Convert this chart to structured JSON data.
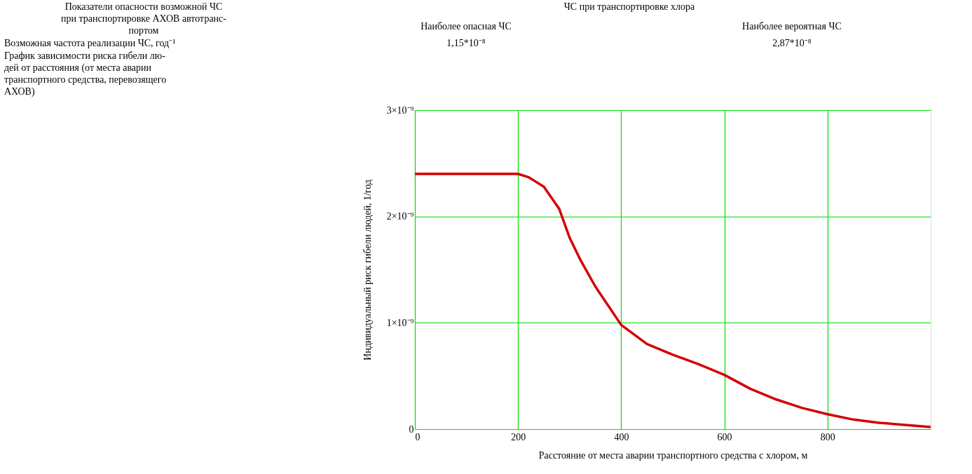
{
  "chart_data": {
    "type": "line",
    "xlabel": "Расстояние от места аварии транспортного средства с хлором, м",
    "ylabel": "Индивидуальный риск гибели людей, 1/год",
    "x": [
      0,
      100,
      200,
      220,
      250,
      280,
      300,
      320,
      350,
      400,
      450,
      500,
      550,
      600,
      650,
      700,
      750,
      800,
      850,
      900,
      950,
      1000
    ],
    "series": [
      {
        "color": "#d40000",
        "values": [
          2.4e-09,
          2.4e-09,
          2.4e-09,
          2.37e-09,
          2.28e-09,
          2.07e-09,
          1.8e-09,
          1.6e-09,
          1.34e-09,
          9.8e-10,
          8e-10,
          7e-10,
          6.1e-10,
          5.1e-10,
          3.8e-10,
          2.8e-10,
          2e-10,
          1.4e-10,
          9e-11,
          6e-11,
          4e-11,
          2e-11
        ]
      }
    ],
    "xlim": [
      0,
      1000
    ],
    "xticks": [
      0,
      200,
      400,
      600,
      800
    ],
    "ylim": [
      0,
      3e-09
    ],
    "yticks": [
      {
        "value": 0,
        "label": "0"
      },
      {
        "value": 1e-09,
        "label": "1×10⁻⁹"
      },
      {
        "value": 2e-09,
        "label": "2×10⁻⁹"
      },
      {
        "value": 3e-09,
        "label": "3×10⁻⁹"
      }
    ],
    "grid": true,
    "marker": "none",
    "line_style": "solid",
    "annotations": [
      "Показатели опасности возможной ЧС\nпри транспортировке АХОВ автотранс-\nпортом",
      "ЧС при транспортировке хлора",
      "Наиболее опасная ЧС",
      "Наиболее вероятная ЧС",
      "Возможная частота реализации ЧС, год⁻¹",
      "1,15*10⁻⁸",
      "2,87*10⁻⁸",
      "График зависимости риска гибели лю-\nдей от расстояния (от места аварии\nтранспортного средства, перевозящего\nАХОВ)"
    ]
  }
}
